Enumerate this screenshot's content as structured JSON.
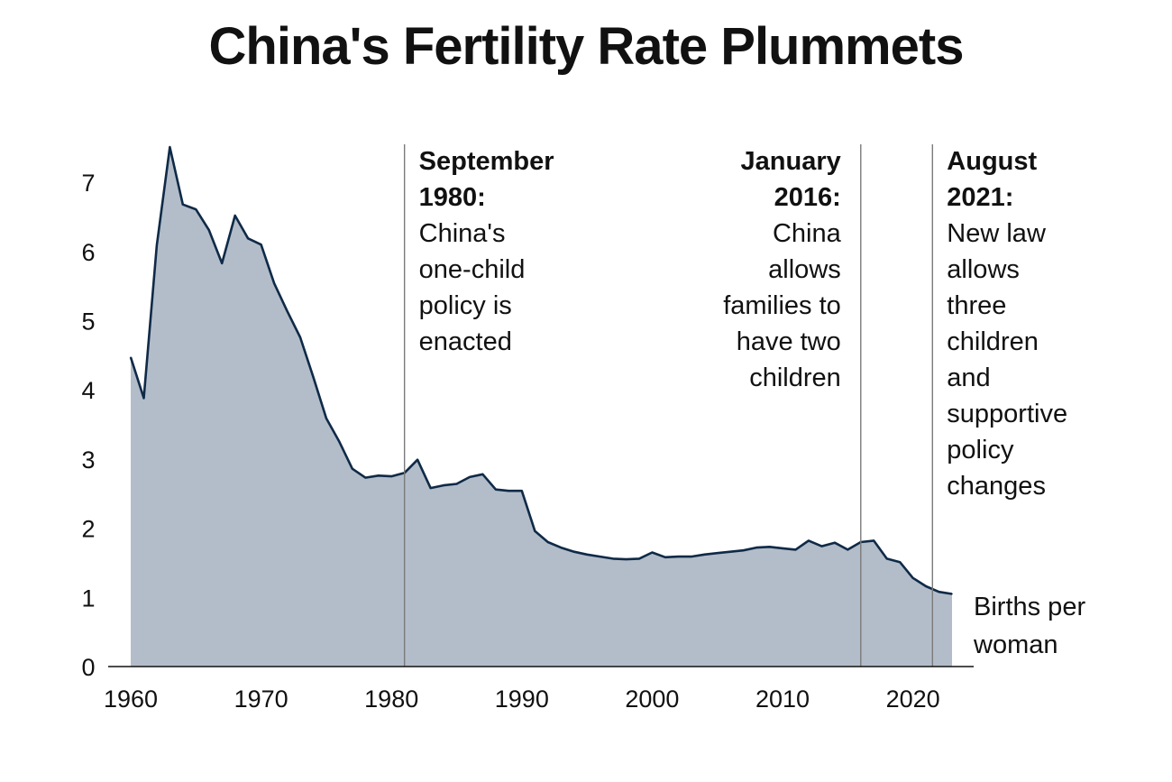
{
  "chart_data": {
    "type": "area",
    "title": "China's Fertility Rate Plummets",
    "xlabel": "",
    "ylabel": "",
    "unit_label": [
      "Births per",
      "woman"
    ],
    "xlim": [
      1960,
      2023
    ],
    "ylim": [
      0,
      7.55
    ],
    "x_ticks": [
      1960,
      1970,
      1980,
      1990,
      2000,
      2010,
      2020
    ],
    "y_ticks": [
      0,
      1,
      2,
      3,
      4,
      5,
      6,
      7
    ],
    "grid": false,
    "colors": {
      "area_fill": "#b3bdc9",
      "line": "#0f2a47",
      "annotation_line": "#7a7a7a",
      "axis": "#111111"
    },
    "series": [
      {
        "x": [
          1960,
          1961,
          1962,
          1963,
          1964,
          1965,
          1966,
          1967,
          1968,
          1969,
          1970,
          1971,
          1972,
          1973,
          1974,
          1975,
          1976,
          1977,
          1978,
          1979,
          1980,
          1981,
          1982,
          1983,
          1984,
          1985,
          1986,
          1987,
          1988,
          1989,
          1990,
          1991,
          1992,
          1993,
          1994,
          1995,
          1996,
          1997,
          1998,
          1999,
          2000,
          2001,
          2002,
          2003,
          2004,
          2005,
          2006,
          2007,
          2008,
          2009,
          2010,
          2011,
          2012,
          2013,
          2014,
          2015,
          2016,
          2017,
          2018,
          2019,
          2020,
          2021,
          2022,
          2023
        ],
        "values": [
          4.47,
          3.88,
          6.09,
          7.51,
          6.68,
          6.61,
          6.31,
          5.83,
          6.52,
          6.19,
          6.1,
          5.54,
          5.14,
          4.76,
          4.19,
          3.59,
          3.25,
          2.86,
          2.73,
          2.76,
          2.75,
          2.8,
          2.99,
          2.58,
          2.62,
          2.64,
          2.74,
          2.78,
          2.56,
          2.54,
          2.54,
          1.96,
          1.8,
          1.72,
          1.66,
          1.62,
          1.59,
          1.56,
          1.55,
          1.56,
          1.65,
          1.58,
          1.59,
          1.59,
          1.62,
          1.64,
          1.66,
          1.68,
          1.72,
          1.73,
          1.71,
          1.69,
          1.82,
          1.74,
          1.79,
          1.69,
          1.8,
          1.82,
          1.56,
          1.51,
          1.28,
          1.16,
          1.08,
          1.05
        ]
      }
    ],
    "annotations": [
      {
        "x": 1981,
        "title": [
          "September",
          "1980:"
        ],
        "body": [
          "China's",
          "one-child",
          "policy is",
          "enacted"
        ],
        "align": "left"
      },
      {
        "x": 2016,
        "title": [
          "January",
          "2016:"
        ],
        "body": [
          "China",
          "allows",
          "families to",
          "have two",
          "children"
        ],
        "align": "right"
      },
      {
        "x": 2021.5,
        "title": [
          "August",
          "2021:"
        ],
        "body": [
          "New law",
          "allows",
          "three",
          "children",
          "and",
          "supportive",
          "policy",
          "changes"
        ],
        "align": "left"
      }
    ]
  }
}
